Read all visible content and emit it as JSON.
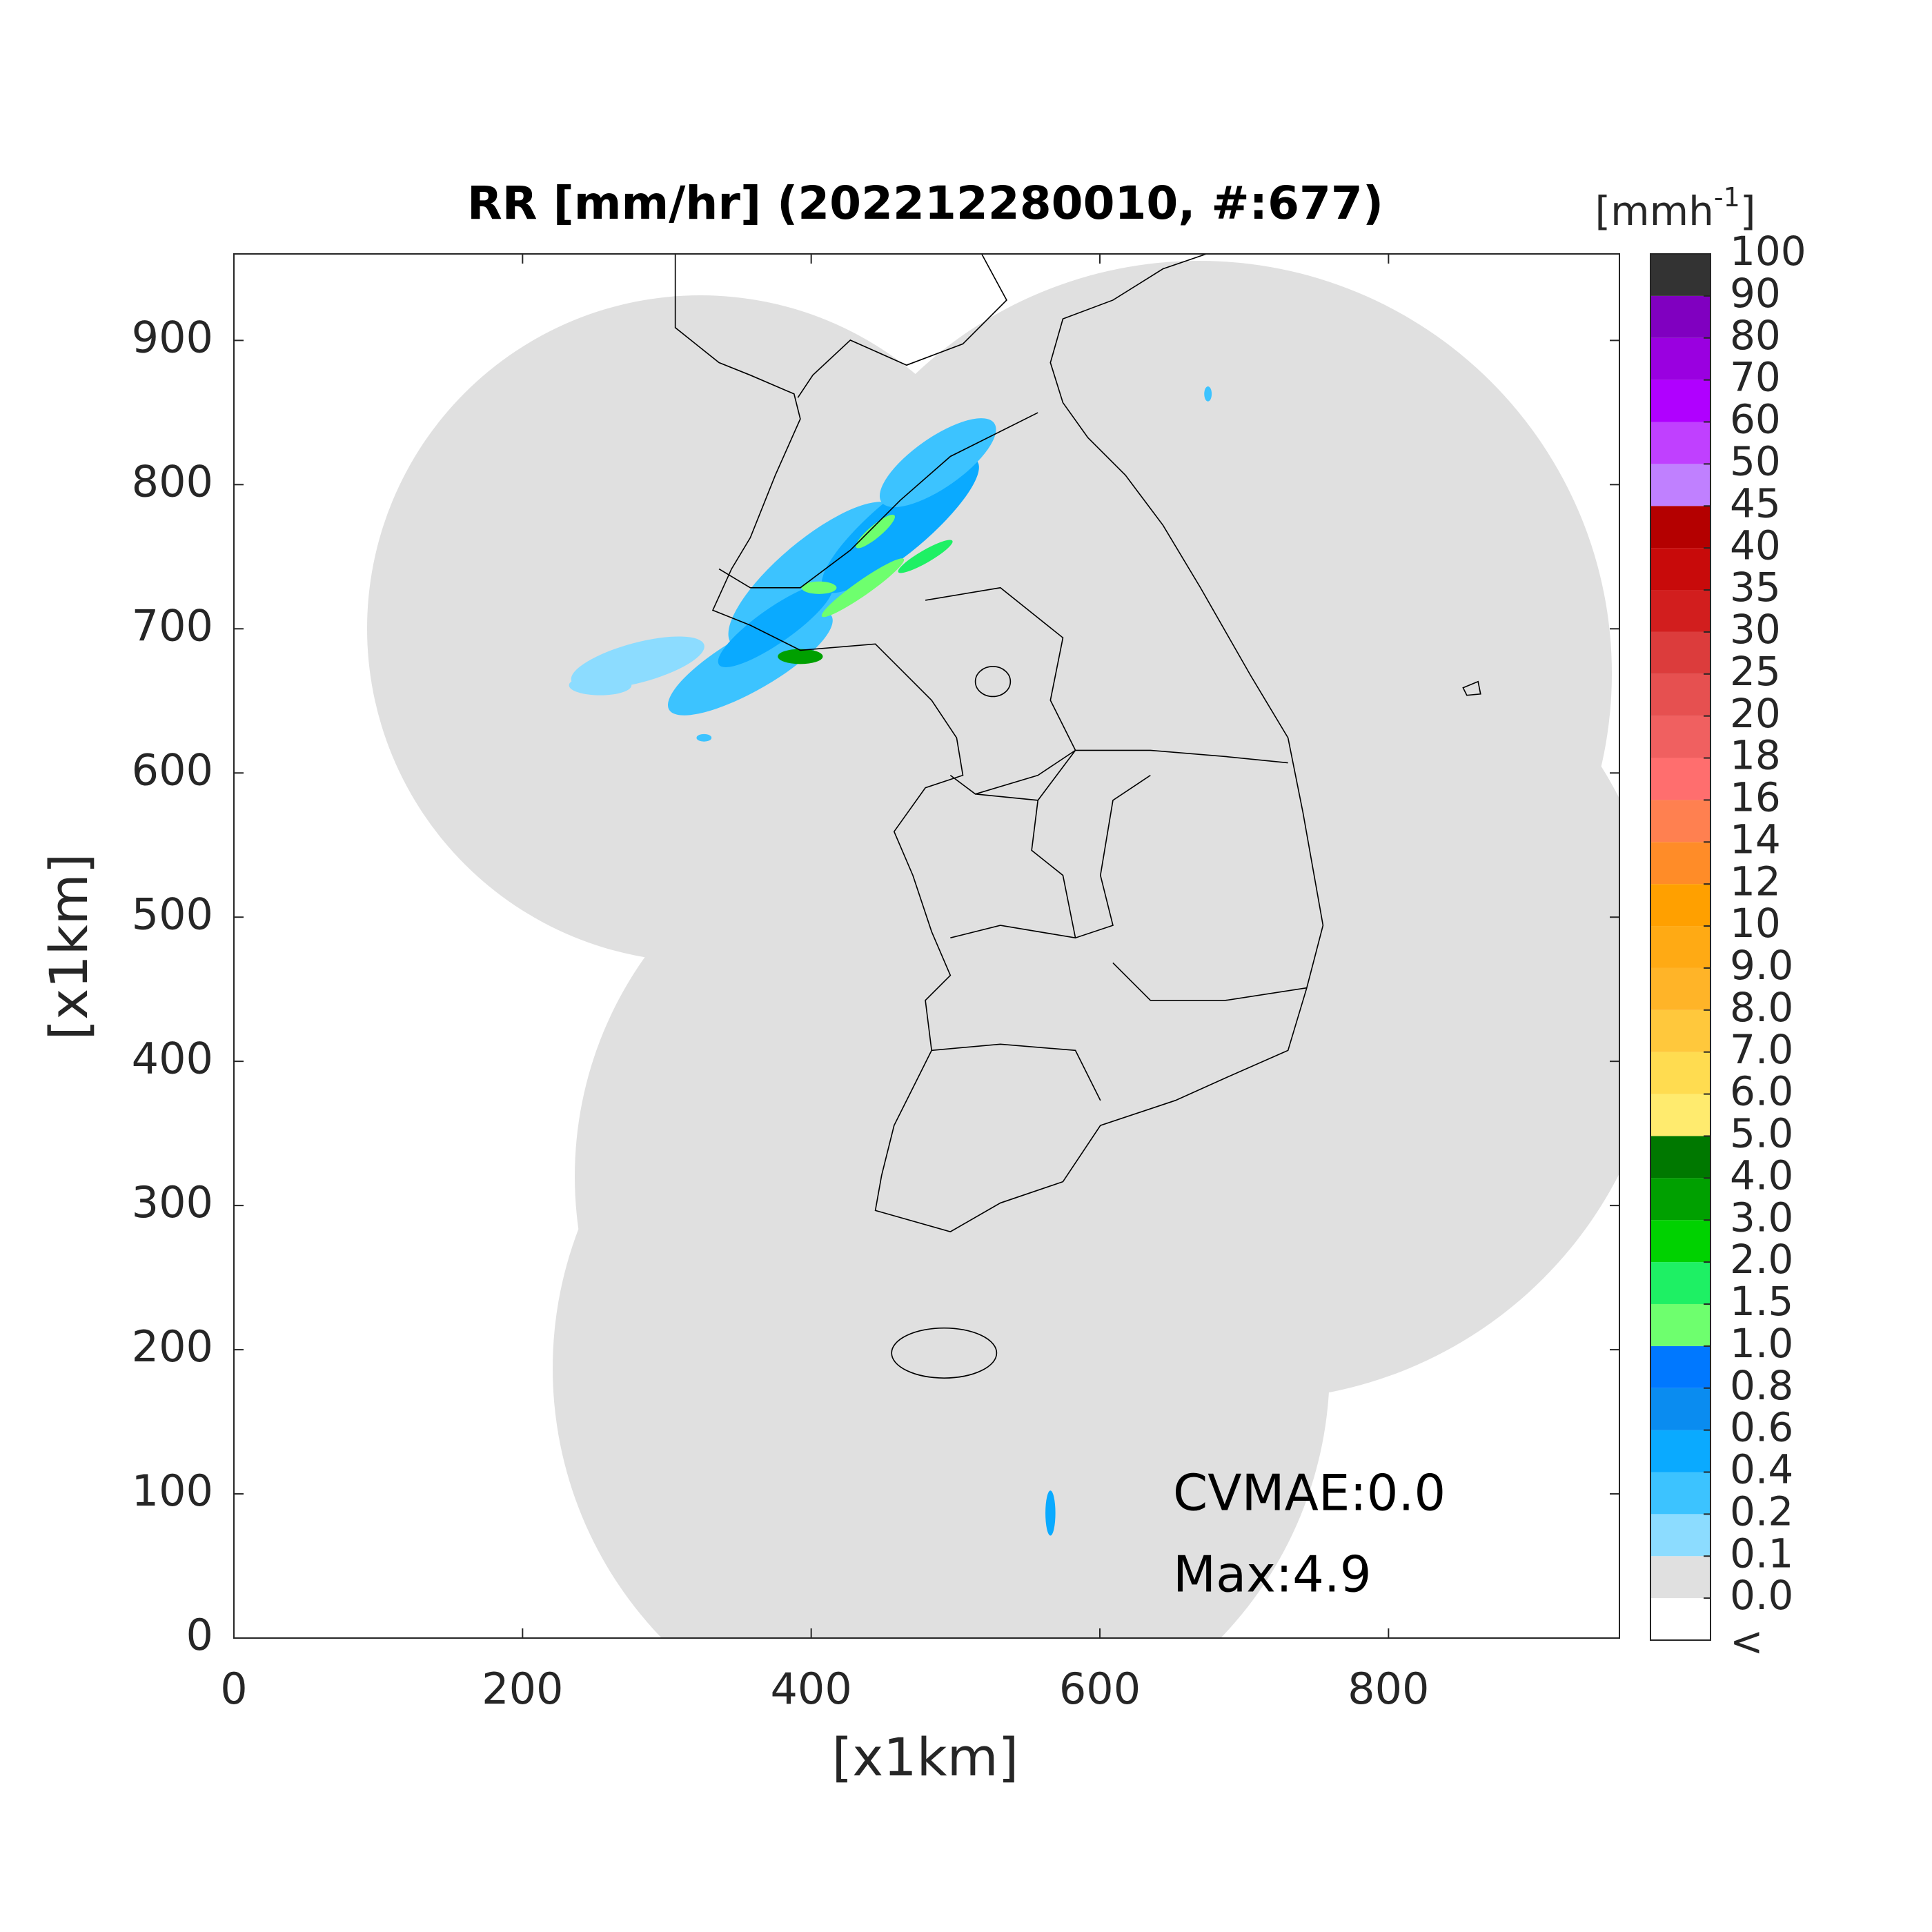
{
  "chart_data": {
    "type": "map",
    "title": "RR [mm/hr] (202212280010, #:677)",
    "x_label": "[x1km]",
    "y_label": "[x1km]",
    "xlim": [
      0,
      960
    ],
    "ylim": [
      0,
      960
    ],
    "xticks": [
      0,
      200,
      400,
      600,
      800
    ],
    "yticks": [
      0,
      100,
      200,
      300,
      400,
      500,
      600,
      700,
      800,
      900
    ],
    "annotations": [
      "CVMAE:0.0",
      "Max:4.9"
    ],
    "colorbar": {
      "unit": {
        "base": "[mmh",
        "sup": "-1",
        "end": "]"
      },
      "under_label": "<",
      "levels": [
        {
          "value": 0,
          "label": "0.0"
        },
        0.1,
        0.2,
        0.4,
        0.6,
        0.8,
        {
          "value": 1,
          "label": "1.0"
        },
        1.5,
        {
          "value": 2,
          "label": "2.0"
        },
        {
          "value": 3,
          "label": "3.0"
        },
        {
          "value": 4,
          "label": "4.0"
        },
        {
          "value": 5,
          "label": "5.0"
        },
        {
          "value": 6,
          "label": "6.0"
        },
        {
          "value": 7,
          "label": "7.0"
        },
        {
          "value": 8,
          "label": "8.0"
        },
        {
          "value": 9,
          "label": "9.0"
        },
        10,
        12,
        14,
        16,
        18,
        20,
        25,
        30,
        35,
        40,
        45,
        50,
        60,
        70,
        80,
        90,
        100
      ],
      "colors": [
        "#ffffff",
        "#e0e0e0",
        "#8cdcff",
        "#3cc3ff",
        "#0aaaff",
        "#0a8cf0",
        "#0078ff",
        "#6eff6e",
        "#1ef064",
        "#00d200",
        "#00a000",
        "#007800",
        "#ffeb6e",
        "#ffdc50",
        "#ffc83c",
        "#ffb428",
        "#ffaa14",
        "#ffa000",
        "#ff8c28",
        "#ff8050",
        "#ff6e6e",
        "#f06060",
        "#e65050",
        "#dc3c3c",
        "#d21e1e",
        "#c80a0a",
        "#b40000",
        "#c080ff",
        "#c040ff",
        "#b000ff",
        "#9a00e0",
        "#8000c0",
        "#333333"
      ]
    }
  }
}
